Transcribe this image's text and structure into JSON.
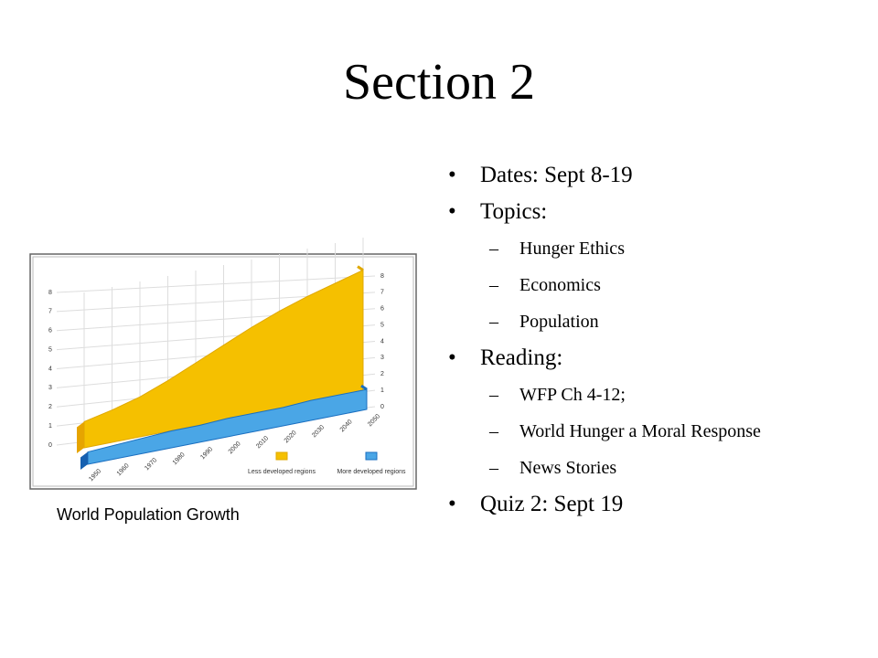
{
  "slide": {
    "title": "Section 2",
    "bullets": [
      {
        "text": "Dates:  Sept 8-19",
        "sub": []
      },
      {
        "text": "Topics:",
        "sub": [
          "Hunger Ethics",
          "Economics",
          "Population"
        ]
      },
      {
        "text": "Reading:",
        "sub": [
          "WFP Ch 4-12;",
          "World Hunger a Moral Response",
          "News Stories"
        ]
      },
      {
        "text": "Quiz 2: Sept 19",
        "sub": []
      }
    ],
    "caption": "World Population Growth"
  },
  "chart_data": {
    "type": "area",
    "categories": [
      "1950",
      "1960",
      "1970",
      "1980",
      "1990",
      "2000",
      "2010",
      "2020",
      "2030",
      "2040",
      "2050"
    ],
    "series": [
      {
        "name": "Less developed regions",
        "color": "#f5c000",
        "values": [
          1.7,
          2.1,
          2.6,
          3.3,
          4.1,
          4.9,
          5.7,
          6.4,
          7.0,
          7.5,
          8.0
        ]
      },
      {
        "name": "More developed regions",
        "color": "#4aa6e6",
        "values": [
          0.8,
          0.9,
          1.0,
          1.1,
          1.1,
          1.2,
          1.2,
          1.2,
          1.3,
          1.3,
          1.3
        ]
      }
    ],
    "ylim": [
      0,
      8
    ],
    "yticks": [
      0,
      1,
      2,
      3,
      4,
      5,
      6,
      7,
      8
    ],
    "grid": true
  }
}
